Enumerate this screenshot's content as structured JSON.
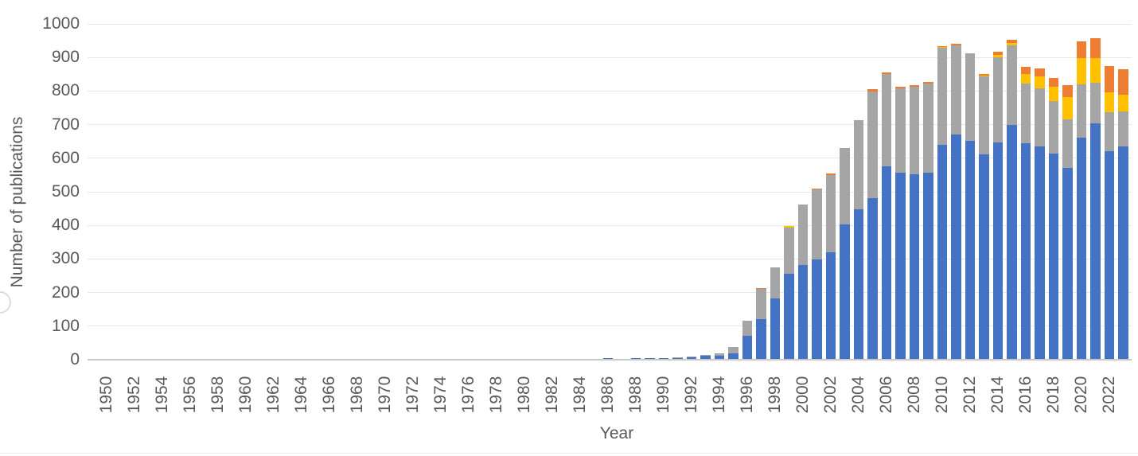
{
  "chart_data": {
    "type": "bar",
    "stacked": true,
    "title": "",
    "xlabel": "Year",
    "ylabel": "Number of publications",
    "ylim": [
      0,
      1000
    ],
    "ytick_interval": 100,
    "ytick_labels": [
      "0",
      "100",
      "200",
      "300",
      "400",
      "500",
      "600",
      "700",
      "800",
      "900",
      "1000"
    ],
    "xtick_labels": [
      "1950",
      "1952",
      "1954",
      "1956",
      "1958",
      "1960",
      "1962",
      "1964",
      "1966",
      "1968",
      "1970",
      "1972",
      "1974",
      "1976",
      "1978",
      "1980",
      "1982",
      "1984",
      "1986",
      "1988",
      "1990",
      "1992",
      "1994",
      "1996",
      "1998",
      "2000",
      "2002",
      "2004",
      "2006",
      "2008",
      "2010",
      "2012",
      "2014",
      "2016",
      "2018",
      "2020",
      "2022"
    ],
    "grid": "horizontal",
    "legend": "none",
    "x": [
      1950,
      1951,
      1952,
      1953,
      1954,
      1955,
      1956,
      1957,
      1958,
      1959,
      1960,
      1961,
      1962,
      1963,
      1964,
      1965,
      1966,
      1967,
      1968,
      1969,
      1970,
      1971,
      1972,
      1973,
      1974,
      1975,
      1976,
      1977,
      1978,
      1979,
      1980,
      1981,
      1982,
      1983,
      1984,
      1985,
      1986,
      1987,
      1988,
      1989,
      1990,
      1991,
      1992,
      1993,
      1994,
      1995,
      1996,
      1997,
      1998,
      1999,
      2000,
      2001,
      2002,
      2003,
      2004,
      2005,
      2006,
      2007,
      2008,
      2009,
      2010,
      2011,
      2012,
      2013,
      2014,
      2015,
      2016,
      2017,
      2018,
      2019,
      2020,
      2021,
      2022,
      2023
    ],
    "series": [
      {
        "name": "blue",
        "color": "#4472C4",
        "values": [
          0,
          0,
          3,
          0,
          0,
          0,
          0,
          0,
          0,
          0,
          0,
          3,
          3,
          0,
          3,
          0,
          0,
          3,
          0,
          0,
          3,
          3,
          3,
          0,
          3,
          0,
          3,
          0,
          0,
          0,
          0,
          0,
          0,
          0,
          0,
          0,
          4,
          0,
          4,
          4,
          4,
          6,
          8,
          12,
          12,
          20,
          71,
          122,
          182,
          255,
          282,
          298,
          321,
          404,
          447,
          482,
          576,
          558,
          552,
          557,
          640,
          670,
          652,
          612,
          646,
          700,
          645,
          634,
          614,
          571,
          661,
          704,
          622,
          634
        ]
      },
      {
        "name": "gray",
        "color": "#A5A5A5",
        "values": [
          0,
          0,
          0,
          0,
          0,
          0,
          0,
          0,
          0,
          0,
          0,
          0,
          0,
          0,
          0,
          0,
          0,
          0,
          0,
          0,
          0,
          0,
          0,
          0,
          0,
          0,
          0,
          0,
          0,
          0,
          0,
          0,
          0,
          0,
          0,
          0,
          0,
          0,
          0,
          0,
          0,
          2,
          2,
          2,
          6,
          18,
          44,
          89,
          92,
          139,
          180,
          208,
          229,
          226,
          266,
          317,
          274,
          249,
          261,
          265,
          288,
          265,
          261,
          231,
          254,
          235,
          178,
          174,
          156,
          144,
          158,
          121,
          115,
          105
        ]
      },
      {
        "name": "yellow",
        "color": "#FFC000",
        "values": [
          0,
          0,
          0,
          0,
          0,
          0,
          0,
          0,
          0,
          0,
          0,
          0,
          0,
          0,
          0,
          0,
          0,
          0,
          0,
          0,
          0,
          0,
          0,
          0,
          0,
          0,
          0,
          0,
          0,
          0,
          0,
          0,
          0,
          0,
          0,
          0,
          0,
          0,
          0,
          0,
          0,
          0,
          0,
          0,
          0,
          0,
          0,
          0,
          0,
          4,
          0,
          0,
          0,
          0,
          0,
          0,
          0,
          0,
          0,
          0,
          3,
          0,
          0,
          4,
          8,
          8,
          28,
          35,
          42,
          66,
          78,
          73,
          60,
          51
        ]
      },
      {
        "name": "orange",
        "color": "#ED7D31",
        "values": [
          0,
          0,
          0,
          0,
          0,
          0,
          0,
          0,
          0,
          0,
          0,
          0,
          0,
          0,
          0,
          0,
          0,
          0,
          0,
          0,
          0,
          0,
          0,
          0,
          0,
          0,
          0,
          0,
          0,
          0,
          0,
          0,
          0,
          0,
          0,
          0,
          0,
          0,
          0,
          0,
          0,
          0,
          0,
          0,
          0,
          0,
          0,
          3,
          0,
          0,
          0,
          4,
          5,
          0,
          0,
          6,
          6,
          5,
          5,
          6,
          3,
          5,
          0,
          4,
          8,
          9,
          20,
          24,
          28,
          37,
          50,
          59,
          77,
          74
        ]
      }
    ]
  },
  "layout_colors": {
    "gridline": "#e8e8e8",
    "axis_line": "#c9c9c9",
    "text": "#595959",
    "background": "#ffffff"
  }
}
